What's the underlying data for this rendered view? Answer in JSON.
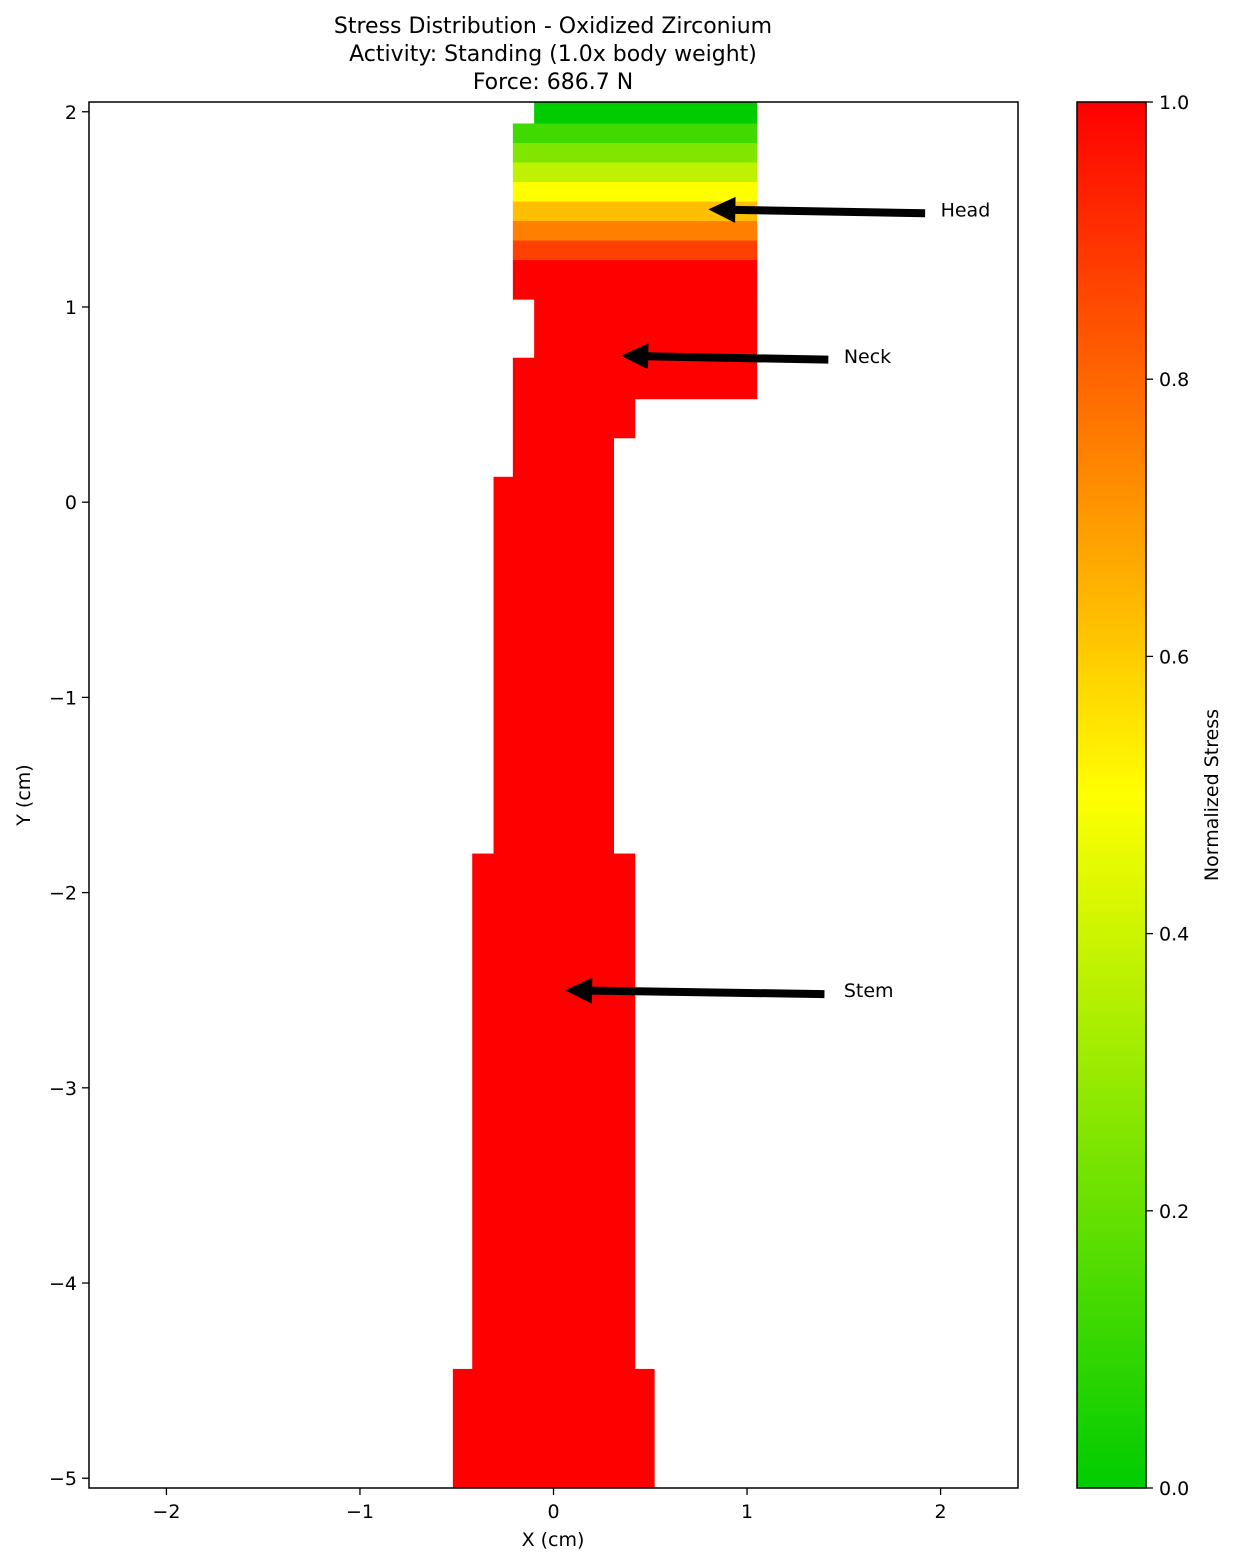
{
  "chart_data": {
    "type": "heatmap",
    "title": [
      "Stress Distribution - Oxidized Zirconium",
      "Activity: Standing (1.0x body weight)",
      "Force: 686.7 N"
    ],
    "xlabel": "X (cm)",
    "ylabel": "Y (cm)",
    "xlim": [
      -2.4,
      2.4
    ],
    "ylim": [
      -5.05,
      2.05
    ],
    "x_ticks": [
      -2,
      -1,
      0,
      1,
      2
    ],
    "x_tick_labels": [
      "−2",
      "−1",
      "0",
      "1",
      "2"
    ],
    "y_ticks": [
      -5,
      -4,
      -3,
      -2,
      -1,
      0,
      1,
      2
    ],
    "y_tick_labels": [
      "−5",
      "−4",
      "−3",
      "−2",
      "−1",
      "0",
      "1",
      "2"
    ],
    "grid": false,
    "cells": [
      {
        "x0": -0.1,
        "x1": 1.05,
        "y0": 1.94,
        "y1": 2.05,
        "value": 0.0
      },
      {
        "x0": -0.21,
        "x1": 1.05,
        "y0": 1.84,
        "y1": 1.94,
        "value": 0.125
      },
      {
        "x0": -0.21,
        "x1": 1.05,
        "y0": 1.74,
        "y1": 1.84,
        "value": 0.25
      },
      {
        "x0": -0.21,
        "x1": 1.05,
        "y0": 1.64,
        "y1": 1.74,
        "value": 0.375
      },
      {
        "x0": -0.21,
        "x1": 1.05,
        "y0": 1.54,
        "y1": 1.64,
        "value": 0.5
      },
      {
        "x0": -0.21,
        "x1": 1.05,
        "y0": 1.44,
        "y1": 1.54,
        "value": 0.625
      },
      {
        "x0": -0.21,
        "x1": 1.05,
        "y0": 1.34,
        "y1": 1.44,
        "value": 0.75
      },
      {
        "x0": -0.21,
        "x1": 1.05,
        "y0": 1.24,
        "y1": 1.34,
        "value": 0.875
      },
      {
        "x0": -0.21,
        "x1": 1.05,
        "y0": 1.04,
        "y1": 1.24,
        "value": 1.0
      },
      {
        "x0": -0.1,
        "x1": 1.05,
        "y0": 0.74,
        "y1": 1.04,
        "value": 1.0
      },
      {
        "x0": -0.21,
        "x1": 1.05,
        "y0": 0.53,
        "y1": 0.74,
        "value": 1.0
      },
      {
        "x0": -0.21,
        "x1": 0.42,
        "y0": 0.33,
        "y1": 0.53,
        "value": 1.0
      },
      {
        "x0": -0.21,
        "x1": 0.31,
        "y0": 0.13,
        "y1": 0.33,
        "value": 1.0
      },
      {
        "x0": -0.31,
        "x1": 0.31,
        "y0": -1.8,
        "y1": 0.13,
        "value": 1.0
      },
      {
        "x0": -0.42,
        "x1": 0.42,
        "y0": -4.44,
        "y1": -1.8,
        "value": 1.0
      },
      {
        "x0": -0.52,
        "x1": 0.52,
        "y0": -5.05,
        "y1": -4.44,
        "value": 1.0
      }
    ],
    "annotations": [
      {
        "text": "Head",
        "text_x": 2.0,
        "text_y": 1.5,
        "arrow_from": [
          1.92,
          1.48
        ],
        "arrow_to": [
          0.8,
          1.5
        ]
      },
      {
        "text": "Neck",
        "text_x": 1.5,
        "text_y": 0.75,
        "arrow_from": [
          1.42,
          0.73
        ],
        "arrow_to": [
          0.35,
          0.75
        ]
      },
      {
        "text": "Stem",
        "text_x": 1.5,
        "text_y": -2.5,
        "arrow_from": [
          1.4,
          -2.52
        ],
        "arrow_to": [
          0.06,
          -2.5
        ]
      }
    ],
    "colorbar": {
      "label": "Normalized Stress",
      "range": [
        0,
        1
      ],
      "colors": [
        "#00cc00",
        "#ffff00",
        "#ff0000"
      ],
      "ticks": [
        0.0,
        0.2,
        0.4,
        0.6,
        0.8,
        1.0
      ],
      "tick_labels": [
        "0.0",
        "0.2",
        "0.4",
        "0.6",
        "0.8",
        "1.0"
      ]
    }
  }
}
